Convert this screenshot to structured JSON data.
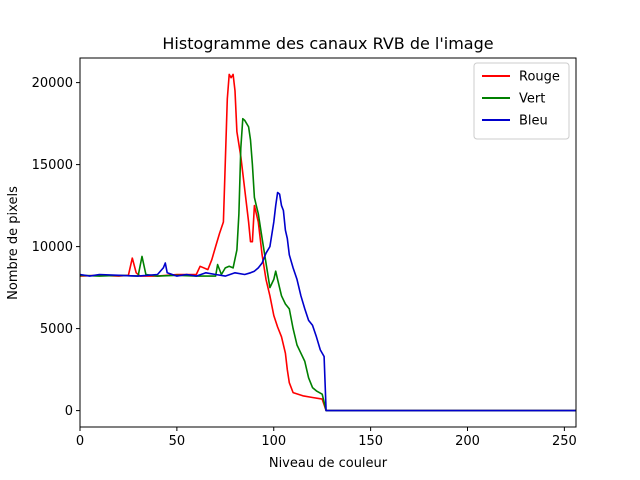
{
  "chart_data": {
    "type": "line",
    "title": "Histogramme des canaux RVB de l'image",
    "xlabel": "Niveau de couleur",
    "ylabel": "Nombre de pixels",
    "xlim": [
      0,
      256
    ],
    "ylim": [
      -1000,
      21500
    ],
    "xticks": [
      0,
      50,
      100,
      150,
      200,
      250
    ],
    "yticks": [
      0,
      5000,
      10000,
      15000,
      20000
    ],
    "grid": false,
    "legend_position": "top-right",
    "series": [
      {
        "name": "Rouge",
        "color": "#ff0000",
        "points": [
          [
            0,
            8200
          ],
          [
            10,
            8250
          ],
          [
            20,
            8200
          ],
          [
            25,
            8250
          ],
          [
            27,
            9300
          ],
          [
            29,
            8400
          ],
          [
            31,
            8200
          ],
          [
            40,
            8200
          ],
          [
            50,
            8300
          ],
          [
            60,
            8300
          ],
          [
            62,
            8800
          ],
          [
            66,
            8600
          ],
          [
            68,
            9200
          ],
          [
            70,
            10000
          ],
          [
            72,
            10800
          ],
          [
            74,
            11500
          ],
          [
            76,
            19000
          ],
          [
            77,
            20500
          ],
          [
            78,
            20300
          ],
          [
            79,
            20500
          ],
          [
            80,
            19500
          ],
          [
            81,
            17000
          ],
          [
            83,
            15500
          ],
          [
            85,
            13500
          ],
          [
            87,
            11500
          ],
          [
            88,
            10300
          ],
          [
            89,
            10300
          ],
          [
            90,
            12500
          ],
          [
            92,
            11500
          ],
          [
            94,
            9500
          ],
          [
            96,
            8000
          ],
          [
            98,
            7000
          ],
          [
            100,
            5800
          ],
          [
            102,
            5100
          ],
          [
            104,
            4500
          ],
          [
            106,
            3500
          ],
          [
            107,
            2500
          ],
          [
            108,
            1700
          ],
          [
            110,
            1100
          ],
          [
            115,
            900
          ],
          [
            120,
            800
          ],
          [
            125,
            700
          ],
          [
            127,
            0
          ],
          [
            130,
            0
          ],
          [
            150,
            0
          ],
          [
            200,
            0
          ],
          [
            256,
            0
          ]
        ]
      },
      {
        "name": "Vert",
        "color": "#008000",
        "points": [
          [
            0,
            8250
          ],
          [
            10,
            8200
          ],
          [
            20,
            8250
          ],
          [
            30,
            8200
          ],
          [
            32,
            9400
          ],
          [
            34,
            8300
          ],
          [
            40,
            8200
          ],
          [
            50,
            8250
          ],
          [
            60,
            8200
          ],
          [
            70,
            8200
          ],
          [
            71,
            8900
          ],
          [
            73,
            8300
          ],
          [
            75,
            8700
          ],
          [
            77,
            8800
          ],
          [
            79,
            8700
          ],
          [
            81,
            9800
          ],
          [
            82,
            12000
          ],
          [
            83,
            16000
          ],
          [
            84,
            17800
          ],
          [
            85,
            17700
          ],
          [
            87,
            17300
          ],
          [
            88,
            16500
          ],
          [
            89,
            15000
          ],
          [
            90,
            13000
          ],
          [
            91,
            12500
          ],
          [
            92,
            12000
          ],
          [
            94,
            10500
          ],
          [
            96,
            9000
          ],
          [
            98,
            7500
          ],
          [
            100,
            8000
          ],
          [
            101,
            8500
          ],
          [
            102,
            8000
          ],
          [
            104,
            7000
          ],
          [
            106,
            6500
          ],
          [
            108,
            6200
          ],
          [
            110,
            5000
          ],
          [
            112,
            4000
          ],
          [
            114,
            3500
          ],
          [
            116,
            3000
          ],
          [
            118,
            2000
          ],
          [
            120,
            1400
          ],
          [
            122,
            1200
          ],
          [
            125,
            1000
          ],
          [
            127,
            0
          ],
          [
            130,
            0
          ],
          [
            256,
            0
          ]
        ]
      },
      {
        "name": "Bleu",
        "color": "#0000cc",
        "points": [
          [
            0,
            8300
          ],
          [
            5,
            8200
          ],
          [
            10,
            8300
          ],
          [
            20,
            8250
          ],
          [
            30,
            8200
          ],
          [
            35,
            8250
          ],
          [
            40,
            8300
          ],
          [
            43,
            8700
          ],
          [
            44,
            9000
          ],
          [
            45,
            8400
          ],
          [
            50,
            8200
          ],
          [
            55,
            8300
          ],
          [
            60,
            8200
          ],
          [
            65,
            8400
          ],
          [
            70,
            8300
          ],
          [
            75,
            8200
          ],
          [
            80,
            8400
          ],
          [
            85,
            8300
          ],
          [
            88,
            8400
          ],
          [
            90,
            8500
          ],
          [
            92,
            8700
          ],
          [
            94,
            9000
          ],
          [
            96,
            9600
          ],
          [
            98,
            10000
          ],
          [
            100,
            11500
          ],
          [
            101,
            12500
          ],
          [
            102,
            13300
          ],
          [
            103,
            13200
          ],
          [
            104,
            12500
          ],
          [
            105,
            12200
          ],
          [
            106,
            11000
          ],
          [
            107,
            10500
          ],
          [
            108,
            9500
          ],
          [
            110,
            8700
          ],
          [
            112,
            8000
          ],
          [
            114,
            7000
          ],
          [
            116,
            6200
          ],
          [
            118,
            5500
          ],
          [
            120,
            5200
          ],
          [
            122,
            4500
          ],
          [
            124,
            3700
          ],
          [
            126,
            3300
          ],
          [
            127,
            0
          ],
          [
            130,
            0
          ],
          [
            256,
            0
          ]
        ]
      }
    ]
  }
}
